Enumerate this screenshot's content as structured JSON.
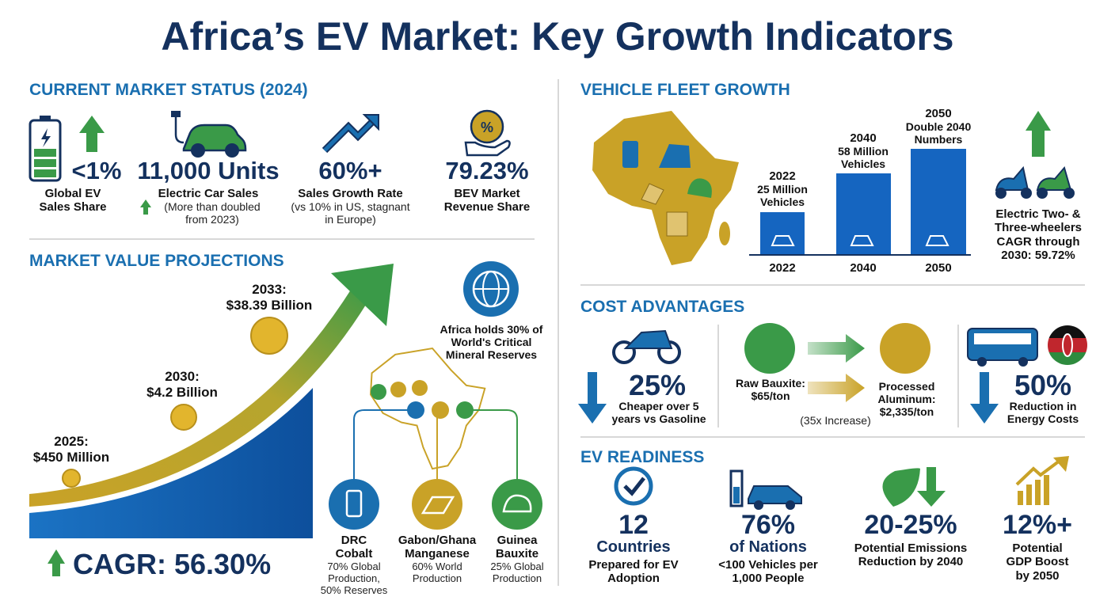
{
  "title": "Africa’s EV Market: Key Growth Indicators",
  "current_market": {
    "heading": "CURRENT MARKET STATUS (2024)",
    "stats": [
      {
        "value": "<1%",
        "label": "Global EV Sales Share"
      },
      {
        "value": "11,000 Units",
        "label": "Electric Car Sales",
        "note": "(More than doubled from 2023)"
      },
      {
        "value": "60%+",
        "label": "Sales Growth Rate",
        "note": "(vs 10% in US, stagnant in Europe)"
      },
      {
        "value": "79.23%",
        "label": "BEV Market Revenue Share"
      }
    ]
  },
  "projections": {
    "heading": "MARKET VALUE PROJECTIONS",
    "points": [
      {
        "year": "2025:",
        "amount": "$450 Million"
      },
      {
        "year": "2030:",
        "amount": "$4.2 Billion"
      },
      {
        "year": "2033:",
        "amount": "$38.39 Billion"
      }
    ],
    "cagr": "CAGR: 56.30%",
    "minerals_note": "Africa holds 30% of World's Critical Mineral Reserves",
    "minerals": [
      {
        "country": "DRC",
        "mineral": "Cobalt",
        "note": "70% Global Production, 50% Reserves"
      },
      {
        "country": "Gabon/Ghana",
        "mineral": "Manganese",
        "note": "60% World Production"
      },
      {
        "country": "Guinea",
        "mineral": "Bauxite",
        "note": "25% Global Production"
      }
    ]
  },
  "fleet": {
    "heading": "VEHICLE FLEET GROWTH",
    "bars": [
      {
        "top": "2022",
        "text": "25 Million Vehicles",
        "year": "2022"
      },
      {
        "top": "2040",
        "text": "58 Million Vehicles",
        "year": "2040"
      },
      {
        "top": "2050",
        "text": "Double 2040 Numbers",
        "year": "2050"
      }
    ],
    "two_wheelers": "Electric Two- & Three-wheelers CAGR through 2030: 59.72%"
  },
  "cost": {
    "heading": "COST ADVANTAGES",
    "motorcycle": {
      "value": "25%",
      "text": "Cheaper over 5 years vs Gasoline"
    },
    "bauxite": {
      "raw": "Raw Bauxite: $65/ton",
      "processed": "Processed Aluminum: $2,335/ton",
      "increase": "(35x Increase)"
    },
    "bus": {
      "value": "50%",
      "text": "Reduction in Energy Costs"
    }
  },
  "readiness": {
    "heading": "EV READINESS",
    "items": [
      {
        "value": "12",
        "unit": "Countries",
        "text": "Prepared for EV Adoption"
      },
      {
        "value": "76%",
        "unit": "of Nations",
        "text": "<100 Vehicles per 1,000 People"
      },
      {
        "value": "20-25%",
        "text": "Potential Emissions Reduction by 2040"
      },
      {
        "value": "12%+",
        "text": "Potential GDP Boost by 2050"
      }
    ]
  }
}
